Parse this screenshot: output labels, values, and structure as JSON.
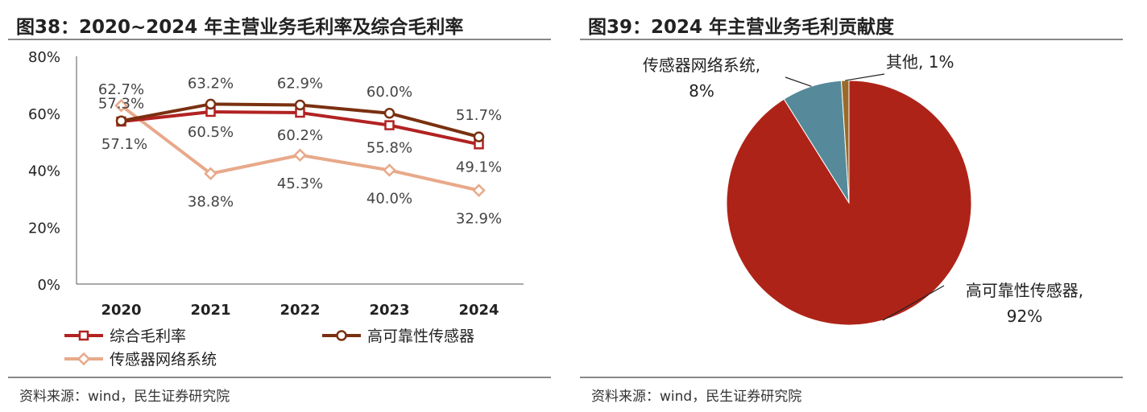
{
  "left_panel": {
    "title": "图38：2020~2024 年主营业务毛利率及综合毛利率",
    "source": "资料来源：wind，民生证券研究院"
  },
  "right_panel": {
    "title": "图39：2024 年主营业务毛利贡献度",
    "source": "资料来源：wind，民生证券研究院"
  },
  "chart_data": [
    {
      "type": "line",
      "categories": [
        "2020",
        "2021",
        "2022",
        "2023",
        "2024"
      ],
      "ylim": [
        0,
        80
      ],
      "yticks": [
        "0%",
        "20%",
        "40%",
        "60%",
        "80%"
      ],
      "grid": false,
      "legend_position": "bottom",
      "series": [
        {
          "name": "综合毛利率",
          "values": [
            57.1,
            60.5,
            60.2,
            55.8,
            49.1
          ],
          "labels": [
            "57.1%",
            "60.5%",
            "60.2%",
            "55.8%",
            "49.1%"
          ],
          "color": "#B22222",
          "marker": "square"
        },
        {
          "name": "高可靠性传感器",
          "values": [
            57.3,
            63.2,
            62.9,
            60.0,
            51.7
          ],
          "labels": [
            "57.3%",
            "63.2%",
            "62.9%",
            "60.0%",
            "51.7%"
          ],
          "color": "#7A3010",
          "marker": "circle"
        },
        {
          "name": "传感器网络系统",
          "values": [
            62.7,
            38.8,
            45.3,
            40.0,
            32.9
          ],
          "labels": [
            "62.7%",
            "38.8%",
            "45.3%",
            "40.0%",
            "32.9%"
          ],
          "color": "#E8A98A",
          "marker": "diamond"
        }
      ]
    },
    {
      "type": "pie",
      "slices": [
        {
          "name": "高可靠性传感器",
          "value": 92,
          "label_value": "92%",
          "color": "#AE2318"
        },
        {
          "name": "传感器网络系统",
          "value": 8,
          "label_value": "8%",
          "color": "#568A9A"
        },
        {
          "name": "其他",
          "value": 1,
          "label_value": "1%",
          "color": "#9A6A2A"
        }
      ]
    }
  ]
}
